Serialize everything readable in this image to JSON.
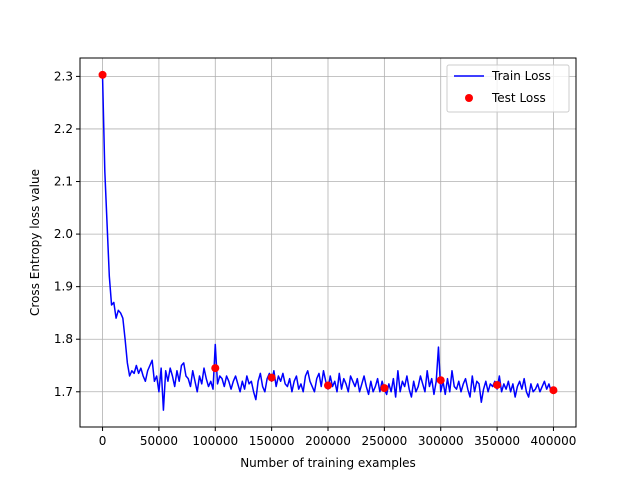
{
  "chart_data": {
    "type": "line",
    "title": "",
    "xlabel": "Number of training examples",
    "ylabel": "Cross Entropy loss value",
    "xlim": [
      -20000,
      420000
    ],
    "ylim": [
      1.633,
      2.335
    ],
    "xticks": [
      0,
      50000,
      100000,
      150000,
      200000,
      250000,
      300000,
      350000,
      400000
    ],
    "yticks": [
      1.7,
      1.8,
      1.9,
      2.0,
      2.1,
      2.2,
      2.3
    ],
    "ytick_decimals": 1,
    "grid": true,
    "legend_position": "top-right",
    "series": [
      {
        "name": "Train Loss",
        "kind": "line",
        "color": "#0000ff",
        "x": [
          0,
          2000,
          4000,
          6000,
          8000,
          10000,
          12000,
          14000,
          16000,
          18000,
          20000,
          22000,
          24000,
          26000,
          28000,
          30000,
          32000,
          34000,
          36000,
          38000,
          40000,
          42000,
          44000,
          46000,
          48000,
          50000,
          52000,
          54000,
          56000,
          58000,
          60000,
          62000,
          64000,
          66000,
          68000,
          70000,
          72000,
          74000,
          76000,
          78000,
          80000,
          82000,
          84000,
          86000,
          88000,
          90000,
          92000,
          94000,
          96000,
          98000,
          100000,
          102000,
          104000,
          106000,
          108000,
          110000,
          112000,
          114000,
          116000,
          118000,
          120000,
          122000,
          124000,
          126000,
          128000,
          130000,
          132000,
          134000,
          136000,
          138000,
          140000,
          142000,
          144000,
          146000,
          148000,
          150000,
          152000,
          154000,
          156000,
          158000,
          160000,
          162000,
          164000,
          166000,
          168000,
          170000,
          172000,
          174000,
          176000,
          178000,
          180000,
          182000,
          184000,
          186000,
          188000,
          190000,
          192000,
          194000,
          196000,
          198000,
          200000,
          202000,
          204000,
          206000,
          208000,
          210000,
          212000,
          214000,
          216000,
          218000,
          220000,
          222000,
          224000,
          226000,
          228000,
          230000,
          232000,
          234000,
          236000,
          238000,
          240000,
          242000,
          244000,
          246000,
          248000,
          250000,
          252000,
          254000,
          256000,
          258000,
          260000,
          262000,
          264000,
          266000,
          268000,
          270000,
          272000,
          274000,
          276000,
          278000,
          280000,
          282000,
          284000,
          286000,
          288000,
          290000,
          292000,
          294000,
          296000,
          298000,
          300000,
          302000,
          304000,
          306000,
          308000,
          310000,
          312000,
          314000,
          316000,
          318000,
          320000,
          322000,
          324000,
          326000,
          328000,
          330000,
          332000,
          334000,
          336000,
          338000,
          340000,
          342000,
          344000,
          346000,
          348000,
          350000,
          352000,
          354000,
          356000,
          358000,
          360000,
          362000,
          364000,
          366000,
          368000,
          370000,
          372000,
          374000,
          376000,
          378000,
          380000,
          382000,
          384000,
          386000,
          388000,
          390000,
          392000,
          394000,
          396000,
          398000,
          400000
        ],
        "y": [
          2.3,
          2.12,
          2.02,
          1.92,
          1.865,
          1.87,
          1.84,
          1.855,
          1.85,
          1.84,
          1.8,
          1.755,
          1.73,
          1.74,
          1.735,
          1.75,
          1.735,
          1.745,
          1.73,
          1.72,
          1.74,
          1.75,
          1.76,
          1.72,
          1.73,
          1.7,
          1.745,
          1.665,
          1.74,
          1.72,
          1.745,
          1.73,
          1.71,
          1.74,
          1.72,
          1.75,
          1.755,
          1.73,
          1.725,
          1.71,
          1.74,
          1.72,
          1.7,
          1.73,
          1.715,
          1.745,
          1.725,
          1.71,
          1.72,
          1.705,
          1.79,
          1.715,
          1.73,
          1.725,
          1.71,
          1.73,
          1.72,
          1.705,
          1.72,
          1.73,
          1.715,
          1.7,
          1.72,
          1.705,
          1.73,
          1.715,
          1.72,
          1.7,
          1.685,
          1.72,
          1.735,
          1.71,
          1.7,
          1.725,
          1.735,
          1.72,
          1.74,
          1.71,
          1.73,
          1.72,
          1.735,
          1.715,
          1.71,
          1.725,
          1.7,
          1.72,
          1.73,
          1.705,
          1.715,
          1.7,
          1.73,
          1.74,
          1.72,
          1.71,
          1.7,
          1.725,
          1.735,
          1.71,
          1.74,
          1.72,
          1.705,
          1.73,
          1.71,
          1.72,
          1.7,
          1.735,
          1.705,
          1.725,
          1.715,
          1.7,
          1.73,
          1.72,
          1.71,
          1.725,
          1.7,
          1.715,
          1.73,
          1.71,
          1.695,
          1.72,
          1.7,
          1.71,
          1.725,
          1.7,
          1.72,
          1.705,
          1.695,
          1.715,
          1.7,
          1.725,
          1.69,
          1.74,
          1.7,
          1.72,
          1.71,
          1.73,
          1.705,
          1.69,
          1.72,
          1.7,
          1.71,
          1.73,
          1.715,
          1.7,
          1.74,
          1.71,
          1.725,
          1.695,
          1.72,
          1.785,
          1.7,
          1.72,
          1.695,
          1.725,
          1.7,
          1.74,
          1.71,
          1.705,
          1.72,
          1.7,
          1.715,
          1.725,
          1.705,
          1.69,
          1.73,
          1.7,
          1.72,
          1.715,
          1.68,
          1.705,
          1.72,
          1.7,
          1.715,
          1.71,
          1.72,
          1.705,
          1.73,
          1.7,
          1.715,
          1.705,
          1.72,
          1.7,
          1.715,
          1.69,
          1.71,
          1.72,
          1.705,
          1.725,
          1.7,
          1.69,
          1.715,
          1.7,
          1.705,
          1.715,
          1.7,
          1.71,
          1.72,
          1.705,
          1.715,
          1.7,
          1.703
        ]
      },
      {
        "name": "Test Loss",
        "kind": "scatter",
        "color": "#ff0000",
        "x": [
          0,
          100000,
          150000,
          200000,
          250000,
          300000,
          350000,
          400000
        ],
        "y": [
          2.303,
          1.745,
          1.727,
          1.712,
          1.707,
          1.722,
          1.713,
          1.703
        ]
      }
    ]
  }
}
